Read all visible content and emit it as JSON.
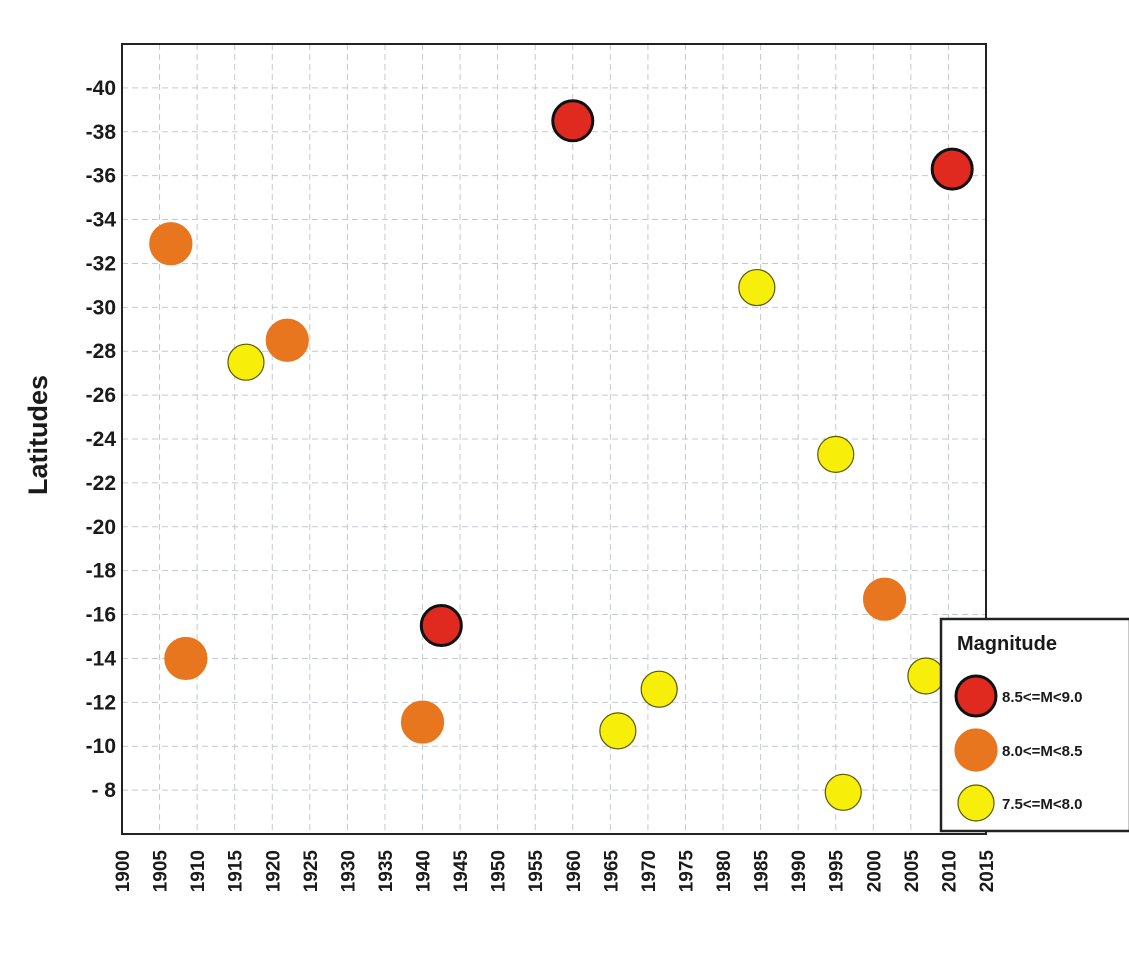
{
  "chart_data": {
    "type": "scatter",
    "title": "",
    "xlabel": "",
    "ylabel": "Latitudes",
    "xlim": [
      1900,
      2015
    ],
    "ylim": [
      -6,
      -42
    ],
    "x_ticks": [
      "1900",
      "1905",
      "1910",
      "1915",
      "1920",
      "1925",
      "1930",
      "1935",
      "1940",
      "1945",
      "1950",
      "1955",
      "1960",
      "1965",
      "1970",
      "1975",
      "1980",
      "1985",
      "1990",
      "1995",
      "2000",
      "2005",
      "2010",
      "2015"
    ],
    "y_ticks": [
      "-40",
      "-38",
      "-36",
      "-34",
      "-32",
      "-30",
      "-28",
      "-26",
      "-24",
      "-22",
      "-20",
      "-18",
      "-16",
      "-14",
      "-12",
      "-10",
      "- 8"
    ],
    "grid": true,
    "legend": {
      "title": "Magnitude",
      "position": "bottom-right",
      "entries": [
        {
          "key": "high",
          "label": "8.5<=M<9.0",
          "color": "#e02a1f",
          "edge": "#111111"
        },
        {
          "key": "mid",
          "label": "8.0<=M<8.5",
          "color": "#e8761e",
          "edge": "#e8761e"
        },
        {
          "key": "low",
          "label": "7.5<=M<8.0",
          "color": "#f7ee0a",
          "edge": "#5a5a00"
        }
      ]
    },
    "points": [
      {
        "x": 1906.5,
        "y": -32.9,
        "cls": "mid"
      },
      {
        "x": 1908.5,
        "y": -14.0,
        "cls": "mid"
      },
      {
        "x": 1916.5,
        "y": -27.5,
        "cls": "low"
      },
      {
        "x": 1922.0,
        "y": -28.5,
        "cls": "mid"
      },
      {
        "x": 1940.0,
        "y": -11.1,
        "cls": "mid"
      },
      {
        "x": 1942.5,
        "y": -15.5,
        "cls": "high"
      },
      {
        "x": 1960.0,
        "y": -38.5,
        "cls": "high"
      },
      {
        "x": 1966.0,
        "y": -10.7,
        "cls": "low"
      },
      {
        "x": 1971.5,
        "y": -12.6,
        "cls": "low"
      },
      {
        "x": 1984.5,
        "y": -30.9,
        "cls": "low"
      },
      {
        "x": 1995.0,
        "y": -23.3,
        "cls": "low"
      },
      {
        "x": 1996.0,
        "y": -7.9,
        "cls": "low"
      },
      {
        "x": 2001.5,
        "y": -16.7,
        "cls": "mid"
      },
      {
        "x": 2007.0,
        "y": -13.2,
        "cls": "low"
      },
      {
        "x": 2010.5,
        "y": -36.3,
        "cls": "high"
      }
    ]
  }
}
